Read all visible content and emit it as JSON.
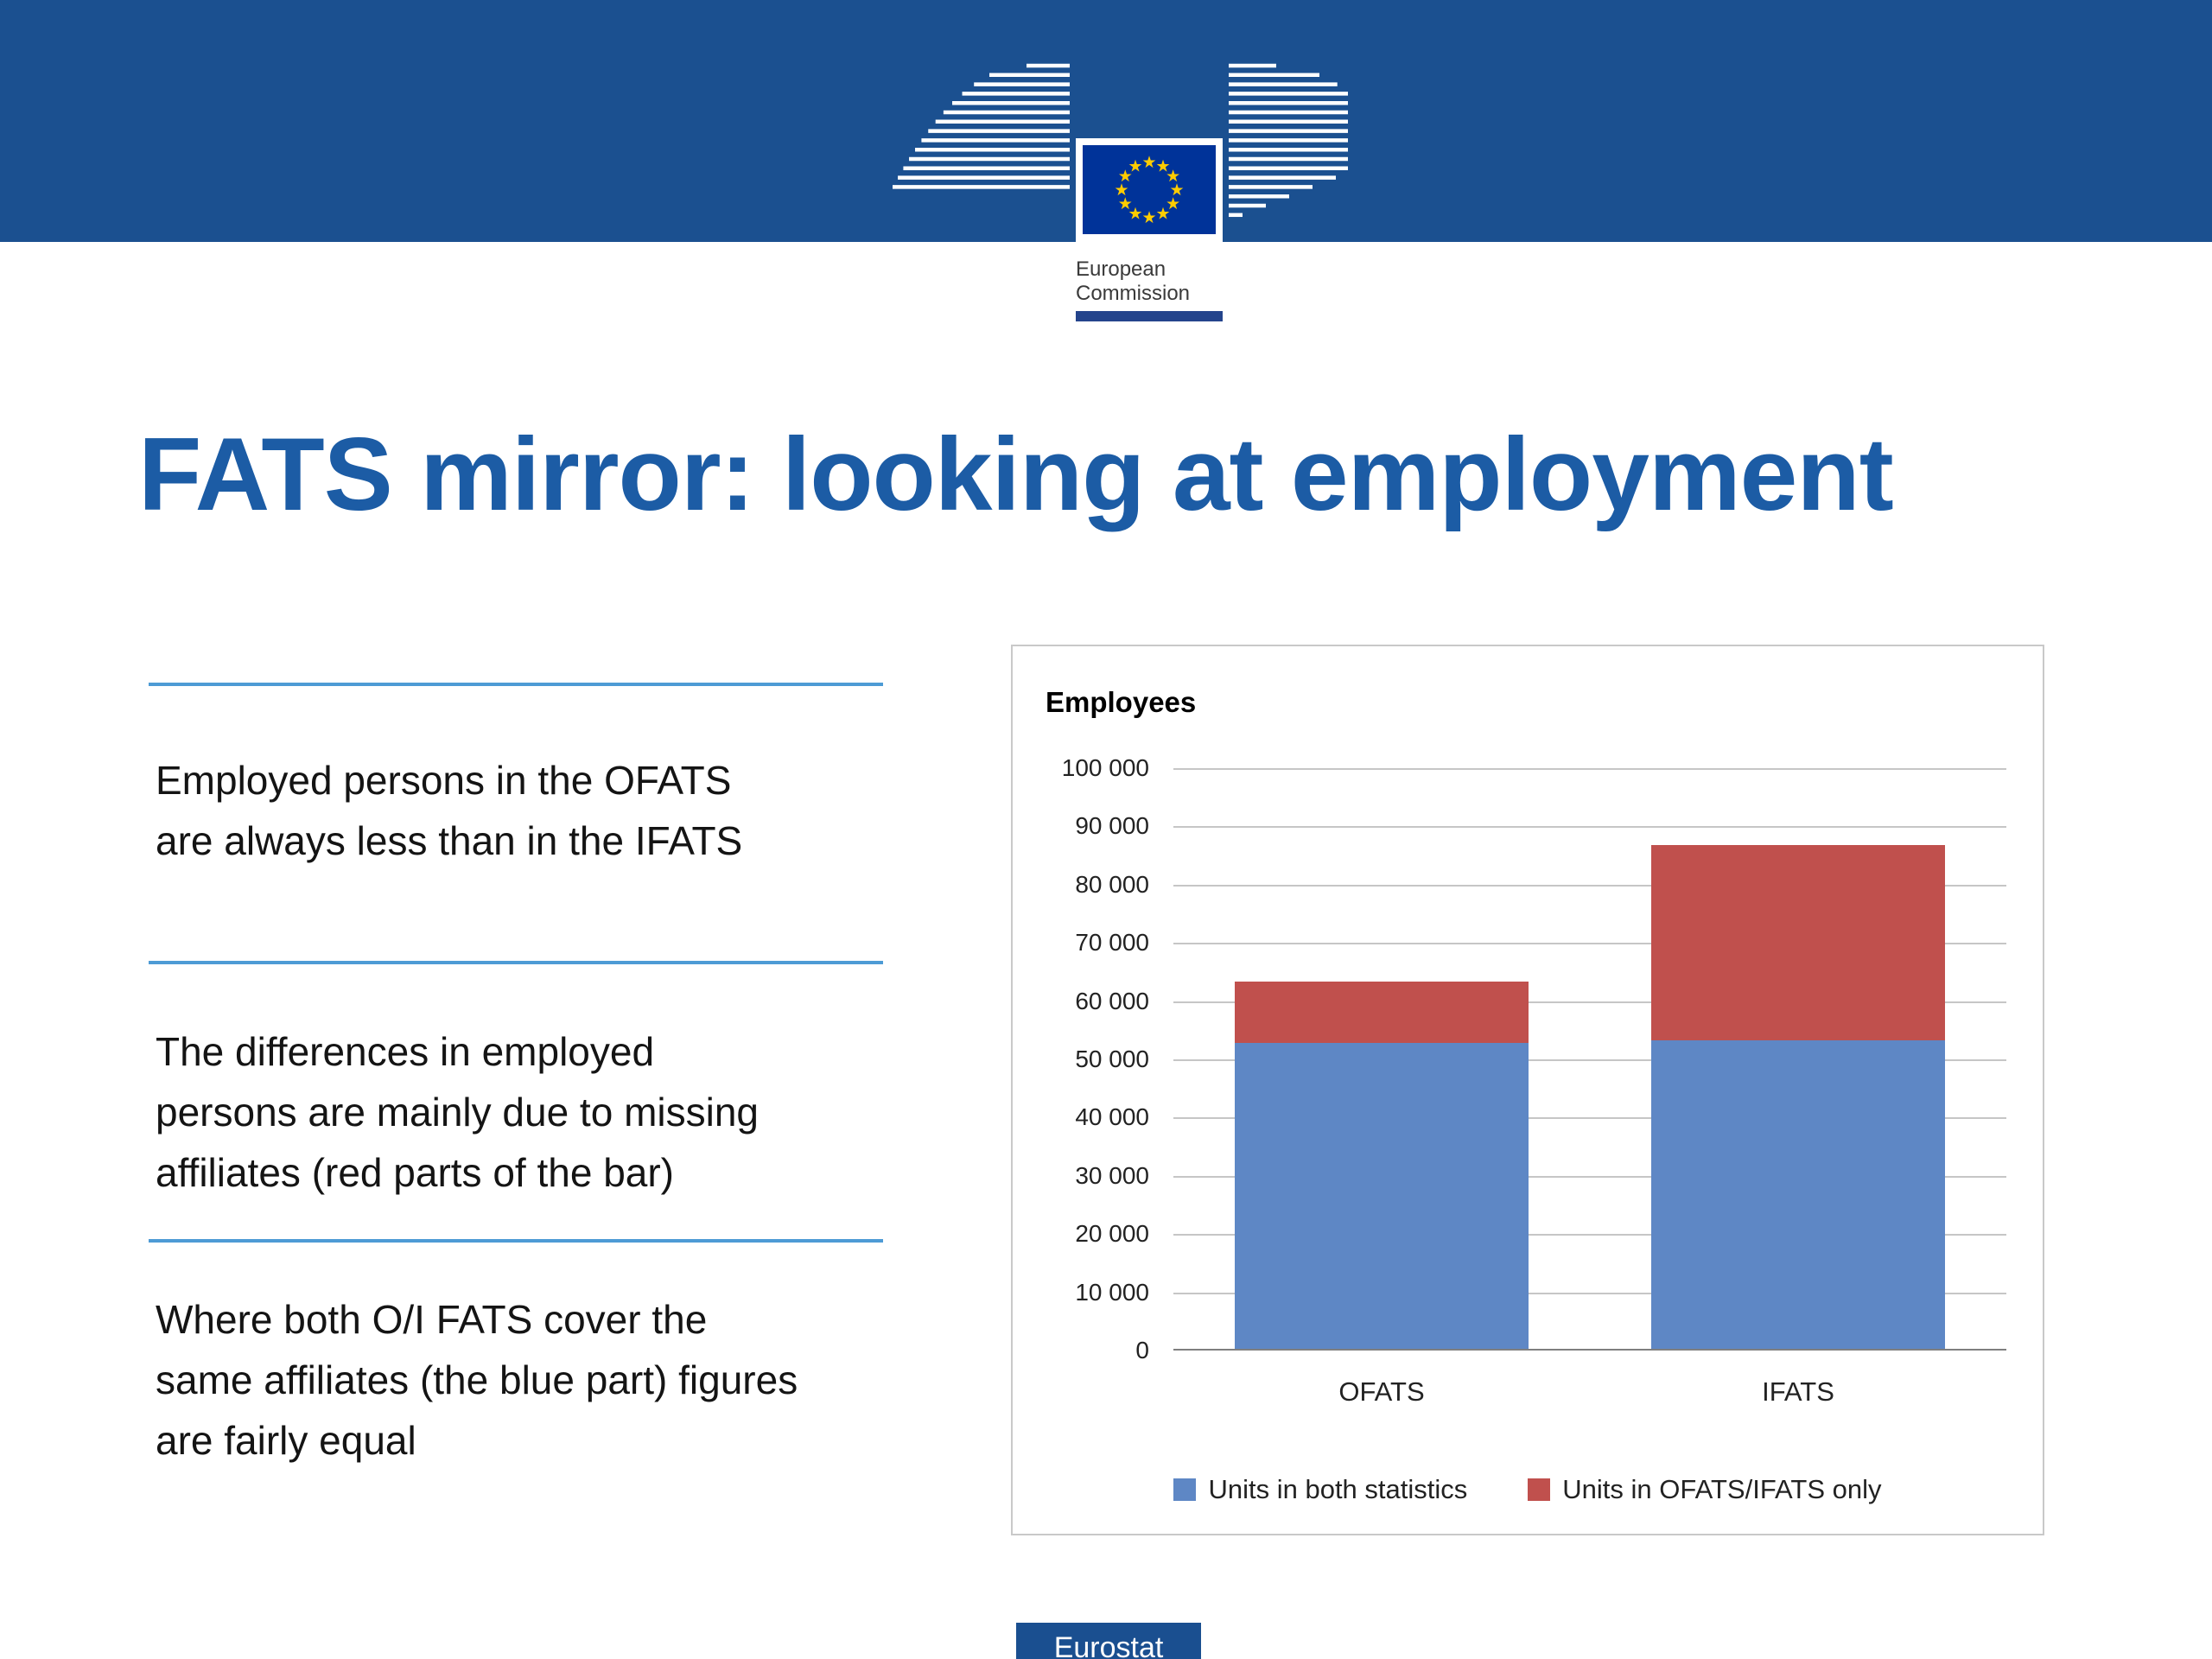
{
  "header": {
    "logo": {
      "caption_line1": "European",
      "caption_line2": "Commission"
    }
  },
  "title": "FATS mirror: looking at employment",
  "bullets": [
    "Employed persons in the OFATS are always less than in the IFATS",
    "The differences in employed persons are mainly due to missing affiliates (red parts of the bar)",
    "Where both O/I FATS cover the same affiliates (the blue part) figures are fairly equal"
  ],
  "chart_data": {
    "type": "bar",
    "stacked": true,
    "title": "Employees",
    "categories": [
      "OFATS",
      "IFATS"
    ],
    "series": [
      {
        "name": "Units in both statistics",
        "color": "#5E87C5",
        "values": [
          52500,
          53000
        ]
      },
      {
        "name": "Units in OFATS/IFATS only",
        "color": "#C0504D",
        "values": [
          10500,
          33500
        ]
      }
    ],
    "ylim": [
      0,
      100000
    ],
    "ytick_step": 10000,
    "ytick_labels": [
      "0",
      "10 000",
      "20 000",
      "30 000",
      "40 000",
      "50 000",
      "60 000",
      "70 000",
      "80 000",
      "90 000",
      "100 000"
    ],
    "grid": true,
    "legend_position": "bottom"
  },
  "footer": {
    "label": "Eurostat"
  },
  "colors": {
    "header_bar": "#1B5090",
    "title_text": "#1C5CA5",
    "separator": "#4D9BD5",
    "series_blue": "#5E87C5",
    "series_red": "#C0504D",
    "footer_bg": "#1A4F90",
    "logo_underline": "#24448C",
    "flag_blue": "#003399",
    "flag_star": "#FFCC00"
  }
}
